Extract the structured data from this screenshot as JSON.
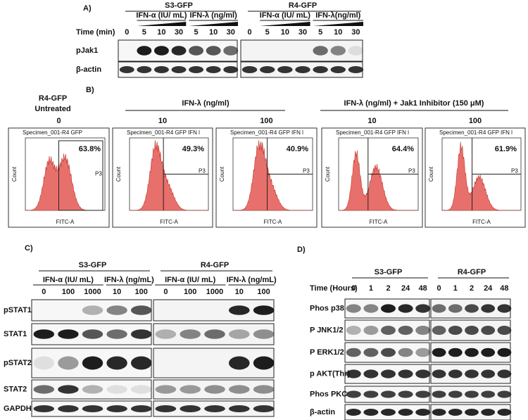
{
  "panel_a": {
    "label": "A)",
    "time_label": "Time (min)",
    "row_labels": [
      "pJak1",
      "β-actin"
    ],
    "groups": [
      {
        "cell_line": "S3-GFP",
        "treatments": [
          "IFN-α (IU/ mL)",
          "IFN-λ (ng/ml)"
        ],
        "lanes": [
          0,
          5,
          10,
          30,
          5,
          10,
          30
        ]
      },
      {
        "cell_line": "R4-GFP",
        "treatments": [
          "IFN-α (IU/ mL)",
          "IFN-λ(ng/ml)"
        ],
        "lanes": [
          0,
          5,
          10,
          30,
          5,
          10,
          30
        ]
      }
    ]
  },
  "panel_b": {
    "label": "B)",
    "cell_line": "R4-GFP",
    "untreated": "Untreated",
    "treatment_1": "IFN-λ (ng/ml)",
    "treatment_2": "IFN-λ (ng/ml) + Jak1 Inhibitor (150 μM)",
    "count_label": "Count",
    "x_label": "FITC-A",
    "gate_label": "P3",
    "plots": [
      {
        "dose": 0,
        "specimen": "Specimen_001-R4 GFP",
        "percent": "63.8%"
      },
      {
        "dose": 10,
        "specimen": "Specimen_001-R4 GFP IFN l",
        "percent": "49.3%"
      },
      {
        "dose": 100,
        "specimen": "Specimen_001-R4 GFP IFN l",
        "percent": "40.9%"
      },
      {
        "dose": 10,
        "specimen": "Specimen_001-R4 GFP IFN l",
        "percent": "64.4%"
      },
      {
        "dose": 100,
        "specimen": "Specimen_001-R4 GFP IFN l",
        "percent": "61.9%"
      }
    ]
  },
  "panel_c": {
    "label": "C)",
    "row_labels": [
      "pSTAT1",
      "STAT1",
      "pSTAT2",
      "STAT2",
      "GAPDH"
    ],
    "groups": [
      {
        "cell_line": "S3-GFP",
        "treatments": [
          "IFN-α (IU/ mL)",
          "IFN-λ (ng/mL)"
        ],
        "lanes": [
          0,
          100,
          1000,
          10,
          100
        ]
      },
      {
        "cell_line": "R4-GFP",
        "treatments": [
          "IFN-α (IU/ mL)",
          "IFN-λ (ng/mL)"
        ],
        "lanes": [
          0,
          100,
          1000,
          10,
          100
        ]
      }
    ]
  },
  "panel_d": {
    "label": "D)",
    "time_label": "Time (Hours)",
    "row_labels": [
      "Phos p38",
      "P JNK1/2",
      "P ERK1/2",
      "p AKT(Thr)",
      "Phos PKC",
      "β-actin"
    ],
    "groups": [
      {
        "cell_line": "S3-GFP",
        "lanes": [
          0,
          1,
          2,
          24,
          48
        ]
      },
      {
        "cell_line": "R4-GFP",
        "lanes": [
          0,
          1,
          2,
          24,
          48
        ]
      }
    ]
  }
}
